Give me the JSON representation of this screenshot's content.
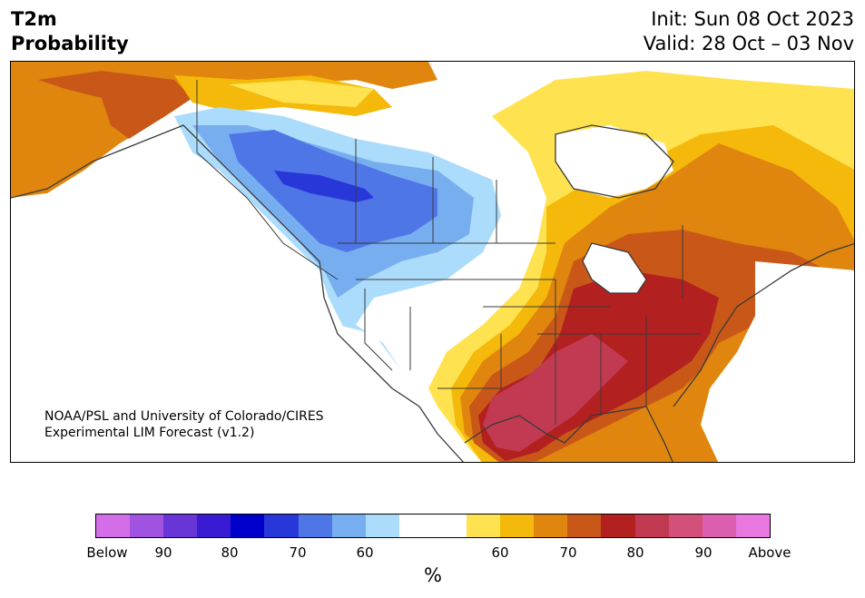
{
  "title": {
    "left_line1": "T2m",
    "left_line2": "Probability",
    "right_line1": "Init: Sun 08 Oct 2023",
    "right_line2": "Valid: 28 Oct – 03 Nov"
  },
  "credit": {
    "line1": "NOAA/PSL and University of Colorado/CIRES",
    "line2": "Experimental LIM Forecast (v1.2)"
  },
  "colorbar": {
    "colors": [
      "#d36ee8",
      "#9f53e0",
      "#6a35d6",
      "#3a1bd4",
      "#0000cc",
      "#2838d8",
      "#4f76e6",
      "#77aef0",
      "#acdcfb",
      "#ffffff",
      "#ffffff",
      "#ffe24f",
      "#f4b90a",
      "#e0860e",
      "#c95818",
      "#b22020",
      "#c23a52",
      "#d2507a",
      "#dc5eaf",
      "#e877e0"
    ],
    "ticks": [
      "Below",
      "90",
      "80",
      "70",
      "60",
      "60",
      "70",
      "80",
      "90",
      "Above"
    ],
    "unit": "%"
  }
}
